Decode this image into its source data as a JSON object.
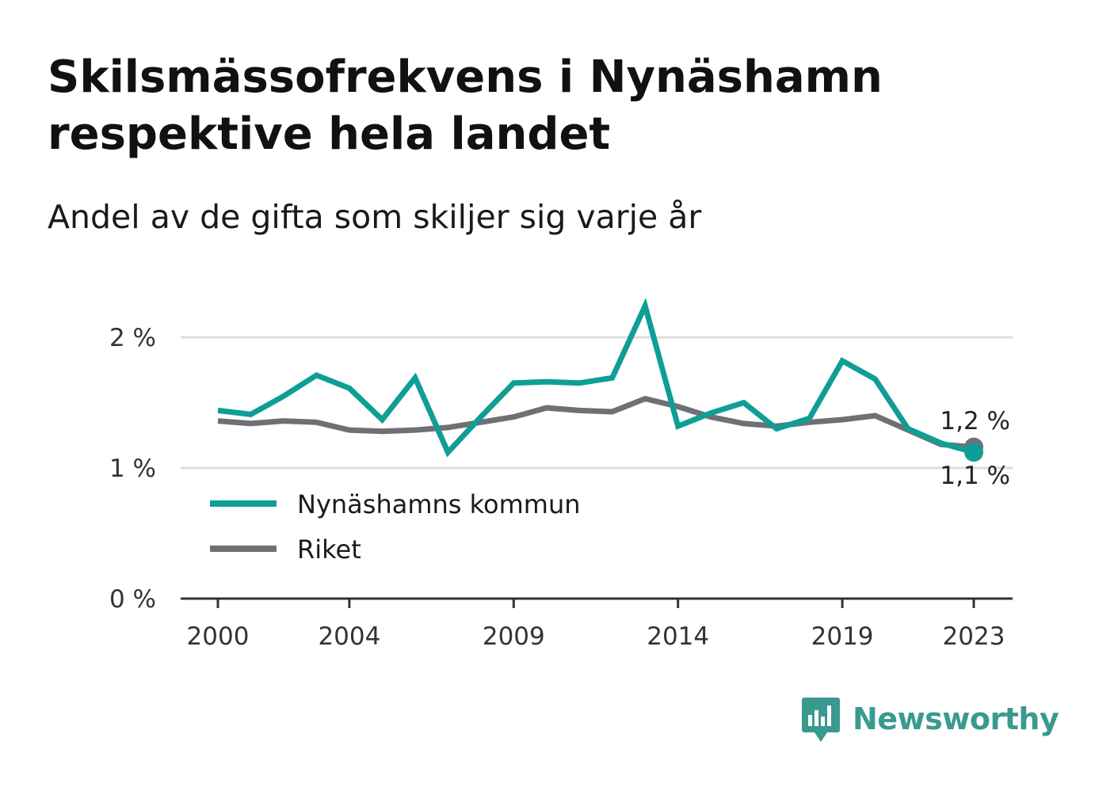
{
  "title": "Skilsmässofrekvens i Nynäshamn respektive hela landet",
  "subtitle": "Andel av de gifta som skiljer sig varje år",
  "brand": {
    "name": "Newsworthy",
    "icon": "newsworthy-logo-icon",
    "color": "#3a9a90"
  },
  "chart_data": {
    "type": "line",
    "title": "Skilsmässofrekvens i Nynäshamn respektive hela landet",
    "subtitle": "Andel av de gifta som skiljer sig varje år",
    "x": [
      2000,
      2001,
      2002,
      2003,
      2004,
      2005,
      2006,
      2007,
      2008,
      2009,
      2010,
      2011,
      2012,
      2013,
      2014,
      2015,
      2016,
      2017,
      2018,
      2019,
      2020,
      2021,
      2022,
      2023
    ],
    "x_ticks": [
      "2000",
      "2004",
      "2009",
      "2014",
      "2019",
      "2023"
    ],
    "y_ticks": [
      "0 %",
      "1 %",
      "2 %"
    ],
    "ylim": [
      0,
      2.3
    ],
    "grid": true,
    "legend_placement": "bottom-left",
    "series": [
      {
        "name": "Nynäshamns kommun",
        "color": "#0f9e96",
        "values": [
          1.44,
          1.41,
          1.55,
          1.71,
          1.61,
          1.37,
          1.69,
          1.12,
          1.39,
          1.65,
          1.66,
          1.65,
          1.69,
          2.24,
          1.32,
          1.42,
          1.5,
          1.3,
          1.38,
          1.82,
          1.68,
          1.3,
          1.19,
          1.12
        ],
        "end_label": "1,1 %"
      },
      {
        "name": "Riket",
        "color": "#707074",
        "values": [
          1.36,
          1.34,
          1.36,
          1.35,
          1.29,
          1.28,
          1.29,
          1.31,
          1.35,
          1.39,
          1.46,
          1.44,
          1.43,
          1.53,
          1.47,
          1.39,
          1.34,
          1.32,
          1.35,
          1.37,
          1.4,
          1.29,
          1.18,
          1.16
        ],
        "end_label": "1,2 %"
      }
    ]
  }
}
